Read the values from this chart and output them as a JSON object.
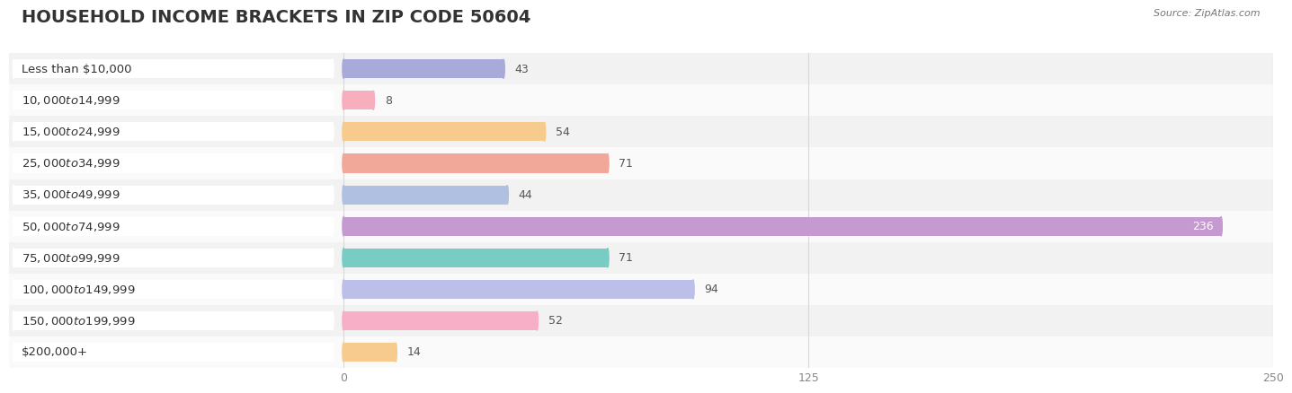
{
  "title": "HOUSEHOLD INCOME BRACKETS IN ZIP CODE 50604",
  "source": "Source: ZipAtlas.com",
  "categories": [
    "Less than $10,000",
    "$10,000 to $14,999",
    "$15,000 to $24,999",
    "$25,000 to $34,999",
    "$35,000 to $49,999",
    "$50,000 to $74,999",
    "$75,000 to $99,999",
    "$100,000 to $149,999",
    "$150,000 to $199,999",
    "$200,000+"
  ],
  "values": [
    43,
    8,
    54,
    71,
    44,
    236,
    71,
    94,
    52,
    14
  ],
  "bar_colors": [
    "#a8abda",
    "#f7afc0",
    "#f7cb8e",
    "#f2a898",
    "#b0c0e0",
    "#c49ad0",
    "#78ccc4",
    "#bcc0e8",
    "#f7afc8",
    "#f7cb8e"
  ],
  "xlim": [
    0,
    250
  ],
  "xticks": [
    0,
    125,
    250
  ],
  "bg_color": "#ffffff",
  "title_fontsize": 14,
  "label_fontsize": 9.5,
  "value_fontsize": 9,
  "bar_height": 0.6,
  "row_even_color": "#f2f2f2",
  "row_odd_color": "#fafafa",
  "label_box_color": "#ffffff",
  "label_text_color": "#333333",
  "value_label_color": "#555555",
  "white_value_color": "#ffffff",
  "grid_color": "#d8d8d8",
  "tick_color": "#888888"
}
